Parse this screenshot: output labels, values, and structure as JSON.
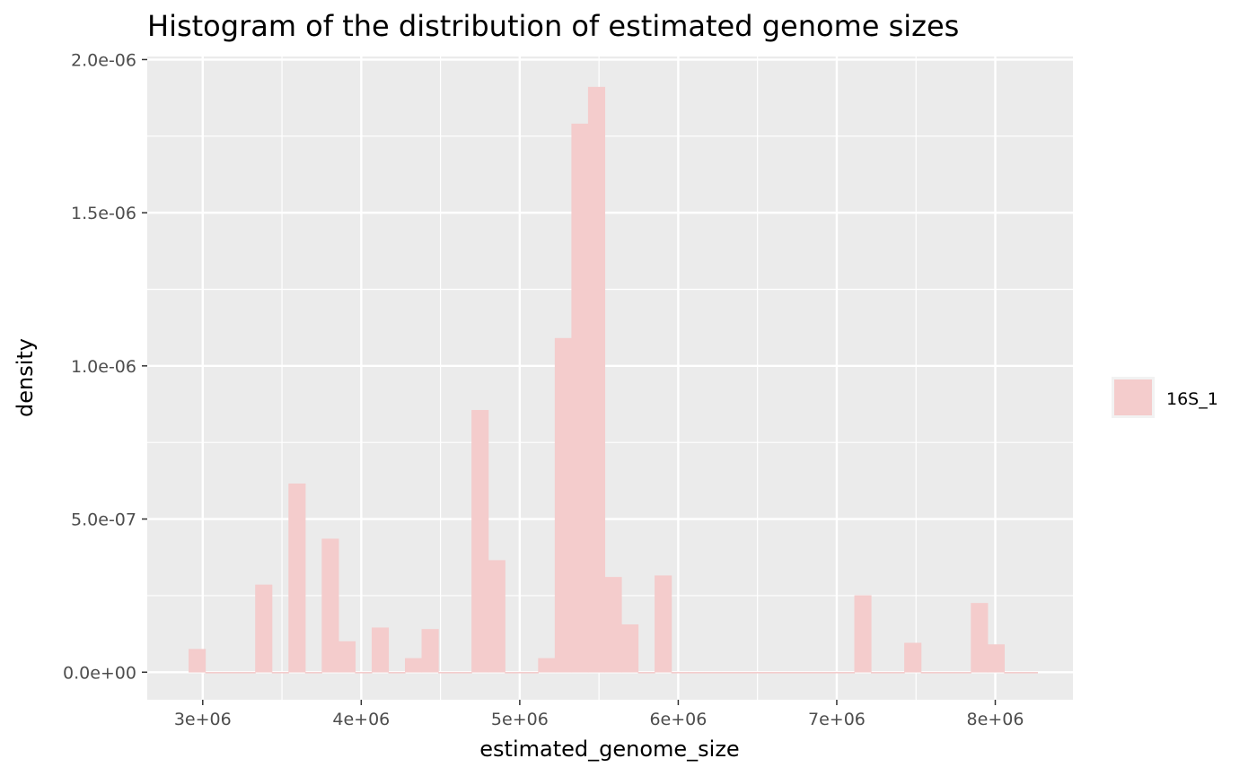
{
  "chart_data": {
    "type": "bar",
    "title": "Histogram of the distribution of estimated genome sizes",
    "xlabel": "estimated_genome_size",
    "ylabel": "density",
    "xlim": [
      2650000,
      8490000
    ],
    "ylim": [
      -9e-08,
      2.01e-06
    ],
    "x_ticks": [
      3000000,
      4000000,
      5000000,
      6000000,
      7000000,
      8000000
    ],
    "x_tick_labels": [
      "3e+06",
      "4e+06",
      "5e+06",
      "6e+06",
      "7e+06",
      "8e+06"
    ],
    "y_ticks": [
      0,
      5e-07,
      1e-06,
      1.5e-06,
      2e-06
    ],
    "y_tick_labels": [
      "0.0e+00",
      "5.0e-07",
      "1.0e-06",
      "1.5e-06",
      "2.0e-06"
    ],
    "grid": true,
    "legend_position": "right",
    "bin_width": 105000,
    "series": [
      {
        "name": "16S_1",
        "color": "#f4cccc",
        "bin_centers": [
          2965000,
          3070000,
          3175000,
          3280000,
          3385000,
          3490000,
          3595000,
          3700000,
          3805000,
          3910000,
          4015000,
          4120000,
          4225000,
          4330000,
          4435000,
          4540000,
          4645000,
          4750000,
          4855000,
          4960000,
          5065000,
          5170000,
          5275000,
          5380000,
          5485000,
          5590000,
          5695000,
          5800000,
          5905000,
          6010000,
          6115000,
          6220000,
          6325000,
          6430000,
          6535000,
          6640000,
          6745000,
          6850000,
          6955000,
          7060000,
          7165000,
          7270000,
          7375000,
          7480000,
          7585000,
          7690000,
          7795000,
          7900000,
          8005000,
          8110000,
          8215000
        ],
        "values": [
          7.5e-08,
          0,
          0,
          0,
          2.85e-07,
          0,
          6.15e-07,
          0,
          4.35e-07,
          1e-07,
          0,
          1.45e-07,
          0,
          4.5e-08,
          1.4e-07,
          0,
          0,
          8.55e-07,
          3.65e-07,
          0,
          0,
          4.5e-08,
          1.09e-06,
          1.79e-06,
          1.91e-06,
          3.1e-07,
          1.55e-07,
          0,
          3.15e-07,
          0,
          0,
          0,
          0,
          0,
          0,
          0,
          0,
          0,
          0,
          0,
          2.5e-07,
          0,
          0,
          9.5e-08,
          0,
          0,
          0,
          2.25e-07,
          9e-08,
          0,
          0
        ]
      }
    ]
  },
  "legend": {
    "items": [
      {
        "label": "16S_1",
        "color": "#f4cccc"
      }
    ]
  }
}
